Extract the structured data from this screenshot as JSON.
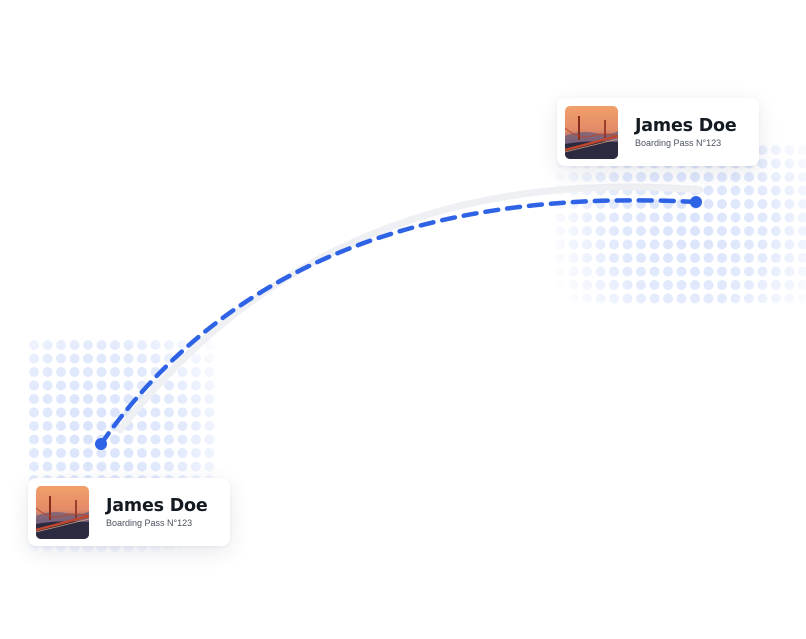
{
  "route": {
    "color": "#2f63e6",
    "trail_color": "#eef0f4",
    "dot_color": "#d9e3fb"
  },
  "cards": [
    {
      "id": "destination",
      "name": "James Doe",
      "subtitle": "Boarding Pass N°123",
      "image_icon": "golden-gate-bridge-photo"
    },
    {
      "id": "origin",
      "name": "James Doe",
      "subtitle": "Boarding Pass N°123",
      "image_icon": "golden-gate-bridge-photo"
    }
  ]
}
